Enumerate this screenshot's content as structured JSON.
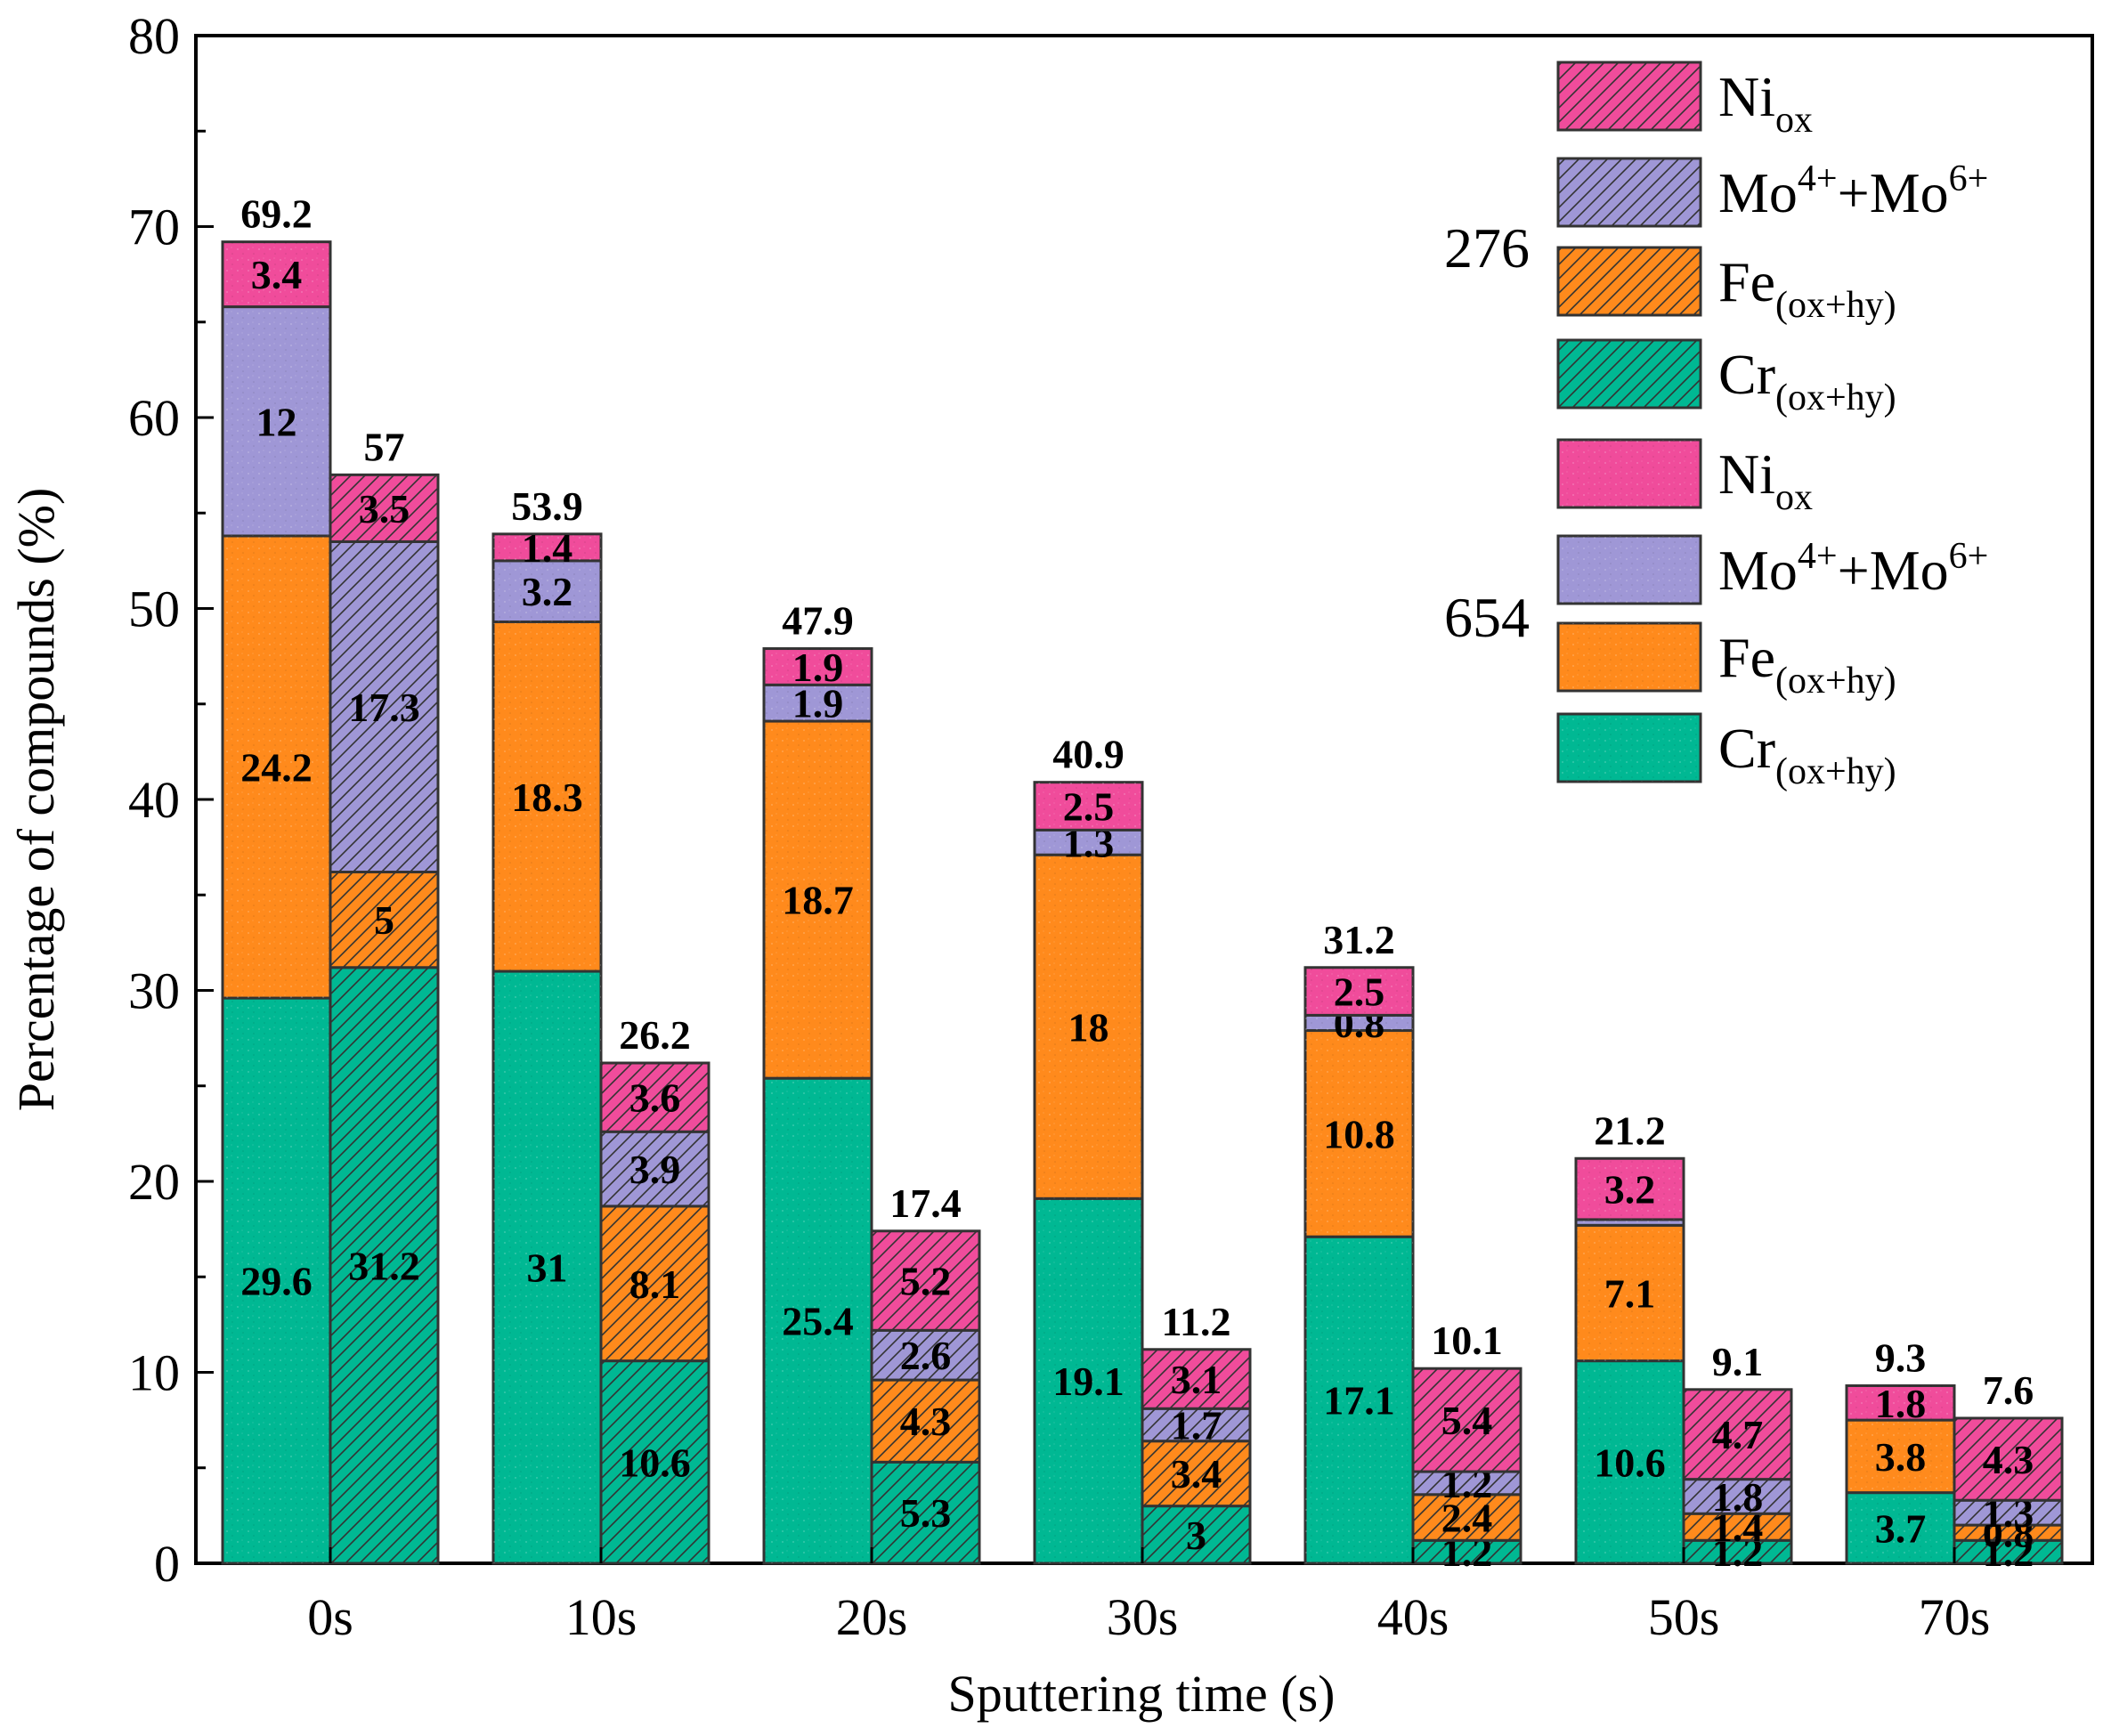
{
  "chart_data": {
    "type": "bar",
    "subtype": "stacked-grouped",
    "categories": [
      "0s",
      "10s",
      "20s",
      "30s",
      "40s",
      "50s",
      "70s"
    ],
    "xlabel": "Sputtering time (s)",
    "ylabel": "Percentage of compounds (%)",
    "ylim": [
      0,
      80
    ],
    "yticks": [
      0,
      10,
      20,
      30,
      40,
      50,
      60,
      70,
      80
    ],
    "grid": false,
    "legend_position": "top-right",
    "groups": [
      {
        "name": "654",
        "fill": "solid",
        "totals": [
          "69.2",
          "53.9",
          "47.9",
          "40.9",
          "31.2",
          "21.2",
          "9.3"
        ],
        "series": [
          {
            "name": "Cr",
            "sub": "(ox+hy)",
            "key": "cr",
            "values": [
              29.6,
              31,
              25.4,
              19.1,
              17.1,
              10.6,
              3.7
            ],
            "labels": [
              "29.6",
              "31",
              "25.4",
              "19.1",
              "17.1",
              "10.6",
              "3.7"
            ]
          },
          {
            "name": "Fe",
            "sub": "(ox+hy)",
            "key": "fe",
            "values": [
              24.2,
              18.3,
              18.7,
              18,
              10.8,
              7.1,
              3.8
            ],
            "labels": [
              "24.2",
              "18.3",
              "18.7",
              "18",
              "10.8",
              "7.1",
              "3.8"
            ]
          },
          {
            "name": "Mo",
            "sup1": "4+",
            "mid": "+Mo",
            "sup2": "6+",
            "key": "mo",
            "values": [
              12,
              3.2,
              1.9,
              1.3,
              0.8,
              0.3,
              0
            ],
            "labels": [
              "12",
              "3.2",
              "1.9",
              "1.3",
              "0.8",
              "",
              ""
            ]
          },
          {
            "name": "Ni",
            "sub": "ox",
            "key": "ni",
            "values": [
              3.4,
              1.4,
              1.9,
              2.5,
              2.5,
              3.2,
              1.8
            ],
            "labels": [
              "3.4",
              "1.4",
              "1.9",
              "2.5",
              "2.5",
              "3.2",
              "1.8"
            ]
          }
        ]
      },
      {
        "name": "276",
        "fill": "hatched",
        "totals": [
          "57",
          "26.2",
          "17.4",
          "11.2",
          "10.1",
          "9.1",
          "7.6"
        ],
        "series": [
          {
            "name": "Cr",
            "sub": "(ox+hy)",
            "key": "cr",
            "values": [
              31.2,
              10.6,
              5.3,
              3,
              1.2,
              1.2,
              1.2
            ],
            "labels": [
              "31.2",
              "10.6",
              "5.3",
              "3",
              "1.2",
              "1.2",
              "1.2"
            ]
          },
          {
            "name": "Fe",
            "sub": "(ox+hy)",
            "key": "fe",
            "values": [
              5,
              8.1,
              4.3,
              3.4,
              2.4,
              1.4,
              0.8
            ],
            "labels": [
              "5",
              "8.1",
              "4.3",
              "3.4",
              "2.4",
              "1.4",
              "0.8"
            ]
          },
          {
            "name": "Mo",
            "sup1": "4+",
            "mid": "+Mo",
            "sup2": "6+",
            "key": "mo",
            "values": [
              17.3,
              3.9,
              2.6,
              1.7,
              1.2,
              1.8,
              1.3
            ],
            "labels": [
              "17.3",
              "3.9",
              "2.6",
              "1.7",
              "1.2",
              "1.8",
              "1.3"
            ]
          },
          {
            "name": "Ni",
            "sub": "ox",
            "key": "ni",
            "values": [
              3.5,
              3.6,
              5.2,
              3.1,
              5.4,
              4.7,
              4.3
            ],
            "labels": [
              "3.5",
              "3.6",
              "5.2",
              "3.1",
              "5.4",
              "4.7",
              "4.3"
            ]
          }
        ]
      }
    ],
    "legend": [
      {
        "group": "276",
        "series_key": "ni"
      },
      {
        "group": "276",
        "series_key": "mo"
      },
      {
        "group": "276",
        "series_key": "fe"
      },
      {
        "group": "276",
        "series_key": "cr"
      },
      {
        "group": "654",
        "series_key": "ni"
      },
      {
        "group": "654",
        "series_key": "mo"
      },
      {
        "group": "654",
        "series_key": "fe"
      },
      {
        "group": "654",
        "series_key": "cr"
      }
    ],
    "colors": {
      "cr": "#00b893",
      "fe": "#ff8a1c",
      "mo": "#9f97d6",
      "ni": "#f04c9b",
      "edge": "#333333"
    }
  }
}
